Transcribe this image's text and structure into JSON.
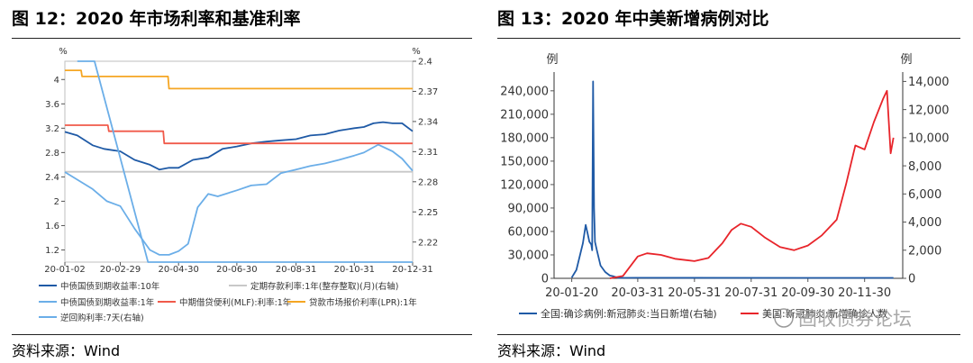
{
  "left": {
    "title": "图 12：2020 年市场利率和基准利率",
    "source": "资料来源：Wind"
  },
  "right": {
    "title": "图 13：2020 年中美新增病例对比",
    "source": "资料来源：Wind"
  },
  "watermark": "固收债券论坛",
  "chart_data": [
    {
      "type": "line",
      "y_unit_left": "%",
      "y_unit_right": "%",
      "yleft_lim": [
        1.0,
        4.3
      ],
      "yleft_ticks": [
        "1.2",
        "1.6",
        "2",
        "2.4",
        "2.8",
        "3.2",
        "3.6",
        "4"
      ],
      "yright_lim": [
        2.2,
        2.4
      ],
      "yright_ticks": [
        "2.22",
        "2.25",
        "2.28",
        "2.31",
        "2.34",
        "2.37",
        "2.4"
      ],
      "x_ticks": [
        "20-01-02",
        "20-02-29",
        "20-04-30",
        "20-06-30",
        "20-08-31",
        "20-10-31",
        "20-12-31"
      ],
      "series": [
        {
          "name": "中债国债到期收益率:10年",
          "axis": "left",
          "color": "#1f5aa6",
          "x": [
            "2020-01-02",
            "2020-01-15",
            "2020-01-31",
            "2020-02-12",
            "2020-02-29",
            "2020-03-15",
            "2020-03-31",
            "2020-04-10",
            "2020-04-20",
            "2020-04-30",
            "2020-05-15",
            "2020-05-31",
            "2020-06-15",
            "2020-06-30",
            "2020-07-15",
            "2020-07-31",
            "2020-08-15",
            "2020-08-31",
            "2020-09-15",
            "2020-09-30",
            "2020-10-15",
            "2020-10-31",
            "2020-11-10",
            "2020-11-20",
            "2020-11-30",
            "2020-12-10",
            "2020-12-20",
            "2020-12-31"
          ],
          "y": [
            3.14,
            3.08,
            2.92,
            2.86,
            2.82,
            2.68,
            2.6,
            2.52,
            2.55,
            2.55,
            2.68,
            2.72,
            2.86,
            2.9,
            2.95,
            2.98,
            3.0,
            3.02,
            3.08,
            3.1,
            3.16,
            3.2,
            3.22,
            3.28,
            3.3,
            3.28,
            3.28,
            3.15
          ]
        },
        {
          "name": "定期存款利率:1年(整存整取)(月)(右轴)",
          "axis": "right",
          "color": "#c8c8c8",
          "x": [
            "2020-01-02",
            "2020-12-31"
          ],
          "y": [
            2.29,
            2.29
          ]
        },
        {
          "name": "中债国债到期收益率:1年",
          "axis": "left",
          "color": "#6baee8",
          "x": [
            "2020-01-02",
            "2020-01-31",
            "2020-02-15",
            "2020-02-29",
            "2020-03-15",
            "2020-03-31",
            "2020-04-10",
            "2020-04-20",
            "2020-04-30",
            "2020-05-10",
            "2020-05-20",
            "2020-05-31",
            "2020-06-10",
            "2020-06-30",
            "2020-07-15",
            "2020-07-31",
            "2020-08-15",
            "2020-08-31",
            "2020-09-15",
            "2020-09-30",
            "2020-10-15",
            "2020-10-31",
            "2020-11-10",
            "2020-11-25",
            "2020-12-10",
            "2020-12-20",
            "2020-12-31"
          ],
          "y": [
            2.48,
            2.2,
            2.0,
            1.92,
            1.55,
            1.2,
            1.12,
            1.12,
            1.18,
            1.3,
            1.9,
            2.12,
            2.08,
            2.18,
            2.26,
            2.28,
            2.46,
            2.52,
            2.58,
            2.62,
            2.68,
            2.75,
            2.8,
            2.93,
            2.82,
            2.7,
            2.5
          ]
        },
        {
          "name": "中期借贷便利(MLF):利率:1年",
          "axis": "left",
          "color": "#f05a4a",
          "x": [
            "2020-01-02",
            "2020-02-16",
            "2020-02-17",
            "2020-04-14",
            "2020-04-15",
            "2020-12-31"
          ],
          "y": [
            3.25,
            3.25,
            3.15,
            3.15,
            2.95,
            2.95
          ]
        },
        {
          "name": "贷款市场报价利率(LPR):1年",
          "axis": "left",
          "color": "#f5a623",
          "x": [
            "2020-01-02",
            "2020-01-19",
            "2020-01-20",
            "2020-02-19",
            "2020-02-20",
            "2020-04-19",
            "2020-04-20",
            "2020-12-31"
          ],
          "y": [
            4.15,
            4.15,
            4.05,
            4.05,
            4.05,
            4.05,
            3.85,
            3.85
          ]
        },
        {
          "name": "逆回购利率:7天(右轴)",
          "axis": "right",
          "color": "#6baee8",
          "x": [
            "2020-01-15",
            "2020-02-02",
            "2020-03-29",
            "2020-12-31"
          ],
          "y": [
            2.4,
            2.4,
            2.2,
            2.2
          ]
        }
      ]
    },
    {
      "type": "line",
      "y_unit_left": "例",
      "y_unit_right": "例",
      "yleft_lim": [
        0,
        264000
      ],
      "yleft_ticks": [
        "0",
        "30,000",
        "60,000",
        "90,000",
        "120,000",
        "150,000",
        "180,000",
        "210,000",
        "240,000"
      ],
      "yright_lim": [
        0,
        14667
      ],
      "yright_ticks": [
        "0",
        "2,000",
        "4,000",
        "6,000",
        "8,000",
        "10,000",
        "12,000",
        "14,000"
      ],
      "x_ticks": [
        "20-01-20",
        "20-03-31",
        "20-05-31",
        "20-07-31",
        "20-09-30",
        "20-11-30"
      ],
      "series": [
        {
          "name": "全国:确诊病例:新冠肺炎:当日新增(右轴)",
          "axis": "right",
          "color": "#1f5aa6",
          "x": [
            "2020-01-20",
            "2020-01-25",
            "2020-02-01",
            "2020-02-04",
            "2020-02-06",
            "2020-02-08",
            "2020-02-10",
            "2020-02-11",
            "2020-02-12",
            "2020-02-13",
            "2020-02-14",
            "2020-02-16",
            "2020-02-20",
            "2020-02-25",
            "2020-03-01",
            "2020-03-05",
            "2020-03-10",
            "2020-03-31",
            "2020-12-31"
          ],
          "y": [
            50,
            600,
            2500,
            3800,
            3200,
            2600,
            2400,
            2000,
            14000,
            5000,
            2600,
            2000,
            900,
            450,
            200,
            140,
            30,
            40,
            30
          ]
        },
        {
          "name": "美国:新冠肺炎:新增确诊人数",
          "axis": "left",
          "color": "#e8242a",
          "x": [
            "2020-03-01",
            "2020-03-15",
            "2020-03-31",
            "2020-04-10",
            "2020-04-25",
            "2020-05-10",
            "2020-05-31",
            "2020-06-15",
            "2020-06-30",
            "2020-07-10",
            "2020-07-20",
            "2020-07-31",
            "2020-08-15",
            "2020-08-31",
            "2020-09-15",
            "2020-09-30",
            "2020-10-15",
            "2020-10-31",
            "2020-11-10",
            "2020-11-20",
            "2020-11-30",
            "2020-12-10",
            "2020-12-20",
            "2020-12-24",
            "2020-12-28",
            "2020-12-31"
          ],
          "y": [
            0,
            3000,
            28000,
            32000,
            30000,
            25000,
            22000,
            26000,
            45000,
            62000,
            70000,
            66000,
            52000,
            40000,
            36000,
            42000,
            55000,
            75000,
            120000,
            170000,
            165000,
            200000,
            230000,
            240000,
            160000,
            180000
          ]
        }
      ]
    }
  ]
}
